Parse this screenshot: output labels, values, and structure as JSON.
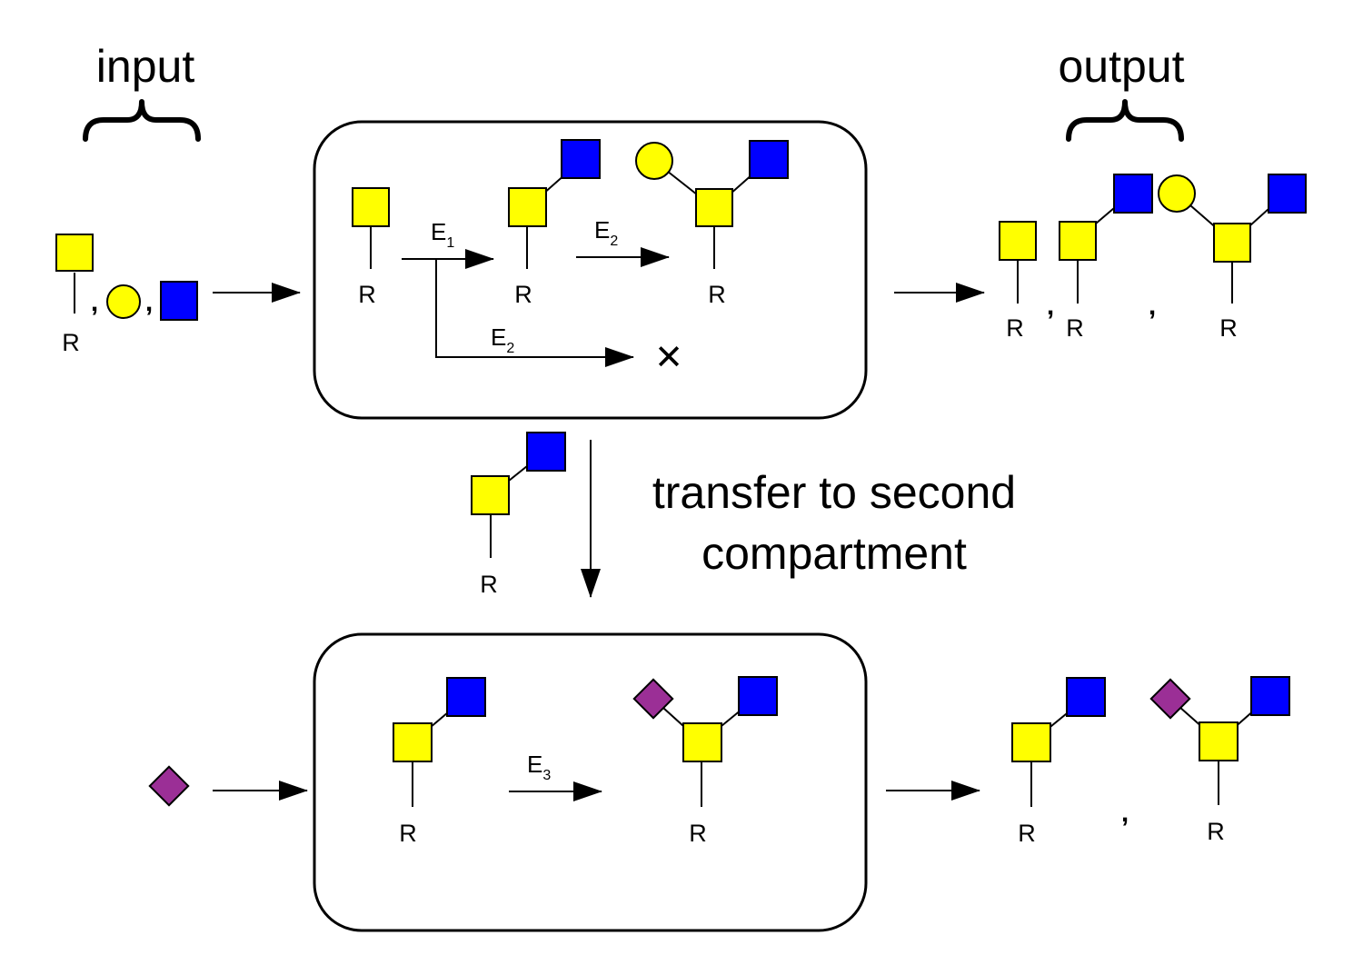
{
  "labels": {
    "input": "input",
    "output": "output",
    "transfer_line1": "transfer to second",
    "transfer_line2": "compartment",
    "reducing_end": "R",
    "separator": ",",
    "blocked": "✕"
  },
  "enzymes": [
    {
      "name": "E",
      "sub": "1"
    },
    {
      "name": "E",
      "sub": "2"
    },
    {
      "name": "E",
      "sub": "2"
    },
    {
      "name": "E",
      "sub": "3"
    }
  ],
  "colors": {
    "galnac_square": "#ffff00",
    "glcnac_square": "#0000ff",
    "galactose_circle": "#ffff00",
    "sialic_diamond": "#9b2f96"
  }
}
